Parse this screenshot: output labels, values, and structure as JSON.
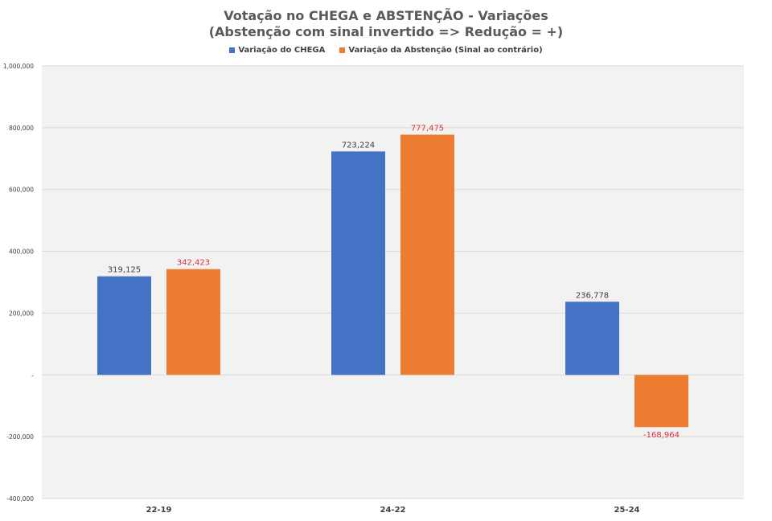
{
  "title_line1": "Votação no CHEGA e ABSTENÇÃO - Variações",
  "title_line2": "(Abstenção com sinal invertido => Redução = +)",
  "chart_data": {
    "type": "bar",
    "title": "Votação no CHEGA e ABSTENÇÃO - Variações",
    "subtitle": "(Abstenção com sinal invertido => Redução = +)",
    "categories": [
      "22-19",
      "24-22",
      "25-24"
    ],
    "series": [
      {
        "name": "Variação do CHEGA",
        "color": "#4472C4",
        "label_color": "#404040",
        "values": [
          319125,
          723224,
          236778
        ],
        "labels": [
          "319,125",
          "723,224",
          "236,778"
        ]
      },
      {
        "name": "Variação da Abstenção (Sinal ao contrário)",
        "color": "#ED7D31",
        "label_color": "#E0303A",
        "values": [
          342423,
          777475,
          -168964
        ],
        "labels": [
          "342,423",
          "777,475",
          "-168,964"
        ]
      }
    ],
    "ylim": [
      -400000,
      1000000
    ],
    "yticks": [
      -400000,
      -200000,
      0,
      200000,
      400000,
      600000,
      800000,
      1000000
    ],
    "ytick_labels": [
      "-400,000",
      "-200,000",
      "-",
      "200,000",
      "400,000",
      "600,000",
      "800,000",
      "1,000,000"
    ],
    "grid": true,
    "legend": "top-center",
    "plot_background": "#F2F2F2"
  }
}
